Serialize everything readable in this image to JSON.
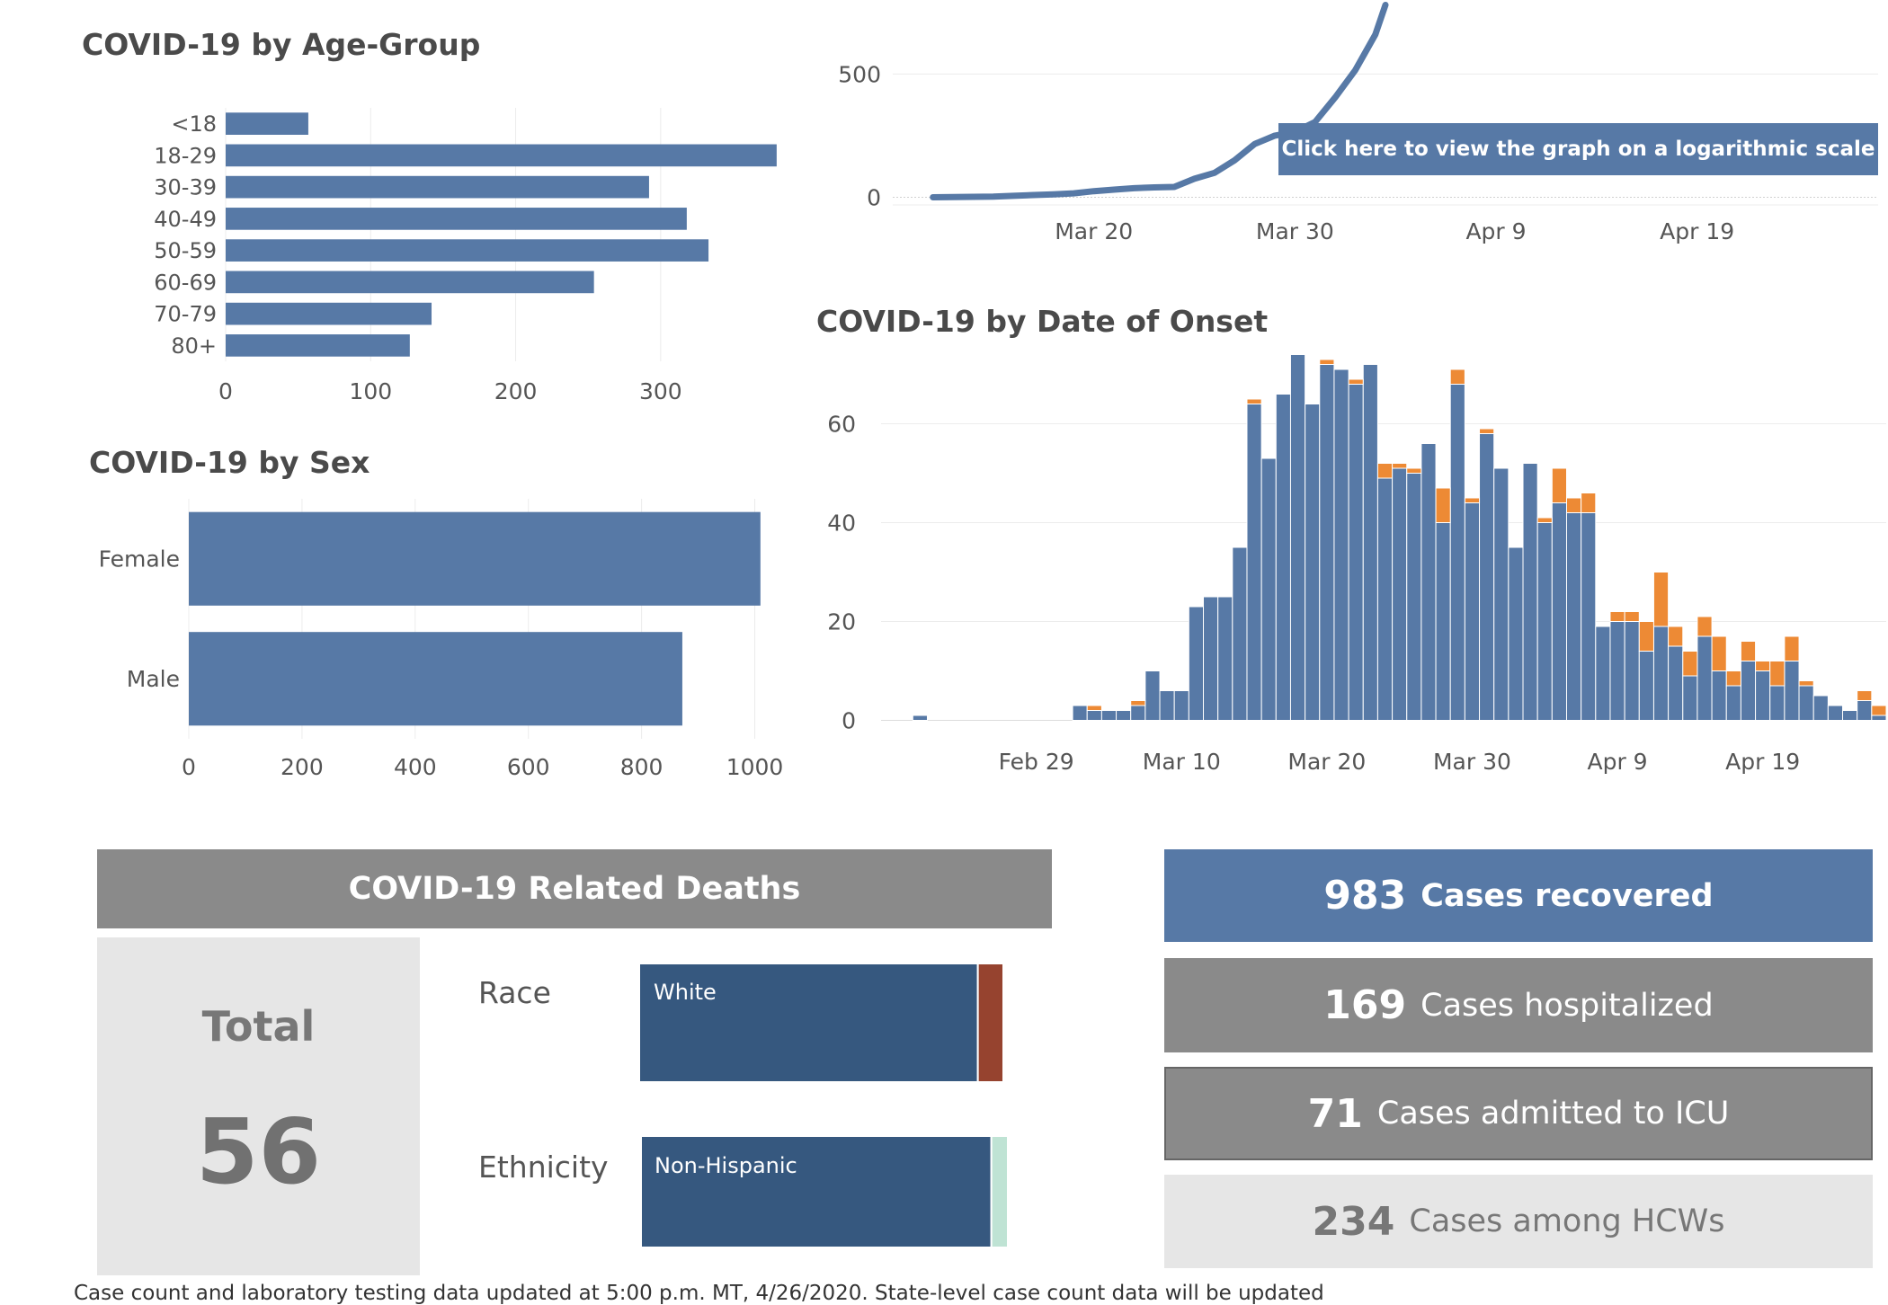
{
  "age_chart": {
    "title": "COVID-19 by Age-Group"
  },
  "sex_chart": {
    "title": "COVID-19 by Sex"
  },
  "cumulative_chart": {
    "log_button_label": "Click here to view the graph on a logarithmic scale"
  },
  "onset_chart": {
    "title": "COVID-19 by Date of Onset"
  },
  "chart_data": [
    {
      "id": "age",
      "type": "bar",
      "orientation": "horizontal",
      "title": "COVID-19 by Age-Group",
      "categories": [
        "<18",
        "18-29",
        "30-39",
        "40-49",
        "50-59",
        "60-69",
        "70-79",
        "80+"
      ],
      "values": [
        57,
        380,
        292,
        318,
        333,
        254,
        142,
        127
      ],
      "xlim": [
        0,
        390
      ],
      "xticks": [
        0,
        100,
        200,
        300
      ],
      "grid": true,
      "color": "#5779a6"
    },
    {
      "id": "sex",
      "type": "bar",
      "orientation": "horizontal",
      "title": "COVID-19 by Sex",
      "categories": [
        "Female",
        "Male"
      ],
      "values": [
        1010,
        872
      ],
      "xlim": [
        0,
        1050
      ],
      "xticks": [
        0,
        200,
        400,
        600,
        800,
        1000
      ],
      "grid": true,
      "color": "#5779a6"
    },
    {
      "id": "cumulative",
      "type": "line",
      "x_range": [
        "2020-03-10",
        "2020-04-28"
      ],
      "xticks": [
        "Mar 20",
        "Mar 30",
        "Apr 9",
        "Apr 19"
      ],
      "ylim": [
        -20,
        800
      ],
      "yticks": [
        0,
        500
      ],
      "color": "#5779a6",
      "points": [
        [
          "2020-03-12",
          0
        ],
        [
          "2020-03-13",
          1
        ],
        [
          "2020-03-14",
          2
        ],
        [
          "2020-03-15",
          3
        ],
        [
          "2020-03-16",
          6
        ],
        [
          "2020-03-17",
          9
        ],
        [
          "2020-03-18",
          12
        ],
        [
          "2020-03-19",
          16
        ],
        [
          "2020-03-20",
          25
        ],
        [
          "2020-03-21",
          31
        ],
        [
          "2020-03-22",
          37
        ],
        [
          "2020-03-23",
          40
        ],
        [
          "2020-03-24",
          42
        ],
        [
          "2020-03-25",
          75
        ],
        [
          "2020-03-26",
          99
        ],
        [
          "2020-03-27",
          150
        ],
        [
          "2020-03-28",
          216
        ],
        [
          "2020-03-29",
          250
        ],
        [
          "2020-03-30",
          265
        ],
        [
          "2020-03-31",
          305
        ],
        [
          "2020-04-01",
          405
        ],
        [
          "2020-04-02",
          515
        ],
        [
          "2020-04-03",
          660
        ],
        [
          "2020-04-03.5",
          780
        ]
      ]
    },
    {
      "id": "onset",
      "type": "bar",
      "stacked": true,
      "title": "COVID-19 by Date of Onset",
      "x_range": [
        "2020-02-19",
        "2020-04-27"
      ],
      "xticks": [
        "Feb 29",
        "Mar 10",
        "Mar 20",
        "Mar 30",
        "Apr 9",
        "Apr 19"
      ],
      "ylim": [
        -3,
        73
      ],
      "yticks": [
        0,
        20,
        40,
        60
      ],
      "grid": true,
      "series": [
        {
          "color": "#5779a6",
          "points": [
            [
              "2020-02-21",
              1
            ],
            [
              "2020-03-03",
              3
            ],
            [
              "2020-03-04",
              2
            ],
            [
              "2020-03-05",
              2
            ],
            [
              "2020-03-06",
              2
            ],
            [
              "2020-03-07",
              3
            ],
            [
              "2020-03-08",
              10
            ],
            [
              "2020-03-09",
              6
            ],
            [
              "2020-03-10",
              6
            ],
            [
              "2020-03-11",
              23
            ],
            [
              "2020-03-12",
              25
            ],
            [
              "2020-03-13",
              25
            ],
            [
              "2020-03-14",
              35
            ],
            [
              "2020-03-15",
              64
            ],
            [
              "2020-03-16",
              53
            ],
            [
              "2020-03-17",
              66
            ],
            [
              "2020-03-18",
              74
            ],
            [
              "2020-03-19",
              64
            ],
            [
              "2020-03-20",
              72
            ],
            [
              "2020-03-21",
              71
            ],
            [
              "2020-03-22",
              68
            ],
            [
              "2020-03-23",
              72
            ],
            [
              "2020-03-24",
              49
            ],
            [
              "2020-03-25",
              51
            ],
            [
              "2020-03-26",
              50
            ],
            [
              "2020-03-27",
              56
            ],
            [
              "2020-03-28",
              40
            ],
            [
              "2020-03-29",
              68
            ],
            [
              "2020-03-30",
              44
            ],
            [
              "2020-03-31",
              58
            ],
            [
              "2020-04-01",
              51
            ],
            [
              "2020-04-02",
              35
            ],
            [
              "2020-04-03",
              52
            ],
            [
              "2020-04-04",
              40
            ],
            [
              "2020-04-05",
              44
            ],
            [
              "2020-04-06",
              42
            ],
            [
              "2020-04-07",
              42
            ],
            [
              "2020-04-08",
              19
            ],
            [
              "2020-04-09",
              20
            ],
            [
              "2020-04-10",
              20
            ],
            [
              "2020-04-11",
              14
            ],
            [
              "2020-04-12",
              19
            ],
            [
              "2020-04-13",
              15
            ],
            [
              "2020-04-14",
              9
            ],
            [
              "2020-04-15",
              17
            ],
            [
              "2020-04-16",
              10
            ],
            [
              "2020-04-17",
              7
            ],
            [
              "2020-04-18",
              12
            ],
            [
              "2020-04-19",
              10
            ],
            [
              "2020-04-20",
              7
            ],
            [
              "2020-04-21",
              12
            ],
            [
              "2020-04-22",
              7
            ],
            [
              "2020-04-23",
              5
            ],
            [
              "2020-04-24",
              3
            ],
            [
              "2020-04-25",
              2
            ],
            [
              "2020-04-26",
              4
            ],
            [
              "2020-04-27",
              1
            ]
          ]
        },
        {
          "color": "#ed8a35",
          "points": [
            [
              "2020-03-04",
              1
            ],
            [
              "2020-03-07",
              1
            ],
            [
              "2020-03-15",
              1
            ],
            [
              "2020-03-20",
              1
            ],
            [
              "2020-03-22",
              1
            ],
            [
              "2020-03-24",
              3
            ],
            [
              "2020-03-25",
              1
            ],
            [
              "2020-03-26",
              1
            ],
            [
              "2020-03-28",
              7
            ],
            [
              "2020-03-29",
              3
            ],
            [
              "2020-03-30",
              1
            ],
            [
              "2020-03-31",
              1
            ],
            [
              "2020-04-04",
              1
            ],
            [
              "2020-04-05",
              7
            ],
            [
              "2020-04-06",
              3
            ],
            [
              "2020-04-07",
              4
            ],
            [
              "2020-04-09",
              2
            ],
            [
              "2020-04-10",
              2
            ],
            [
              "2020-04-11",
              6
            ],
            [
              "2020-04-12",
              11
            ],
            [
              "2020-04-13",
              4
            ],
            [
              "2020-04-14",
              5
            ],
            [
              "2020-04-15",
              4
            ],
            [
              "2020-04-16",
              7
            ],
            [
              "2020-04-17",
              3
            ],
            [
              "2020-04-18",
              4
            ],
            [
              "2020-04-19",
              2
            ],
            [
              "2020-04-20",
              5
            ],
            [
              "2020-04-21",
              5
            ],
            [
              "2020-04-22",
              1
            ],
            [
              "2020-04-26",
              2
            ],
            [
              "2020-04-27",
              2
            ]
          ]
        }
      ]
    },
    {
      "id": "deaths_race",
      "type": "bar",
      "stacked": true,
      "orientation": "horizontal",
      "categories": [
        "White"
      ],
      "segments": [
        {
          "label": "White",
          "share": 0.93,
          "color": "#36587f"
        },
        {
          "label": "",
          "share": 0.07,
          "color": "#96432f"
        }
      ]
    },
    {
      "id": "deaths_ethnicity",
      "type": "bar",
      "stacked": true,
      "orientation": "horizontal",
      "categories": [
        "Non-Hispanic"
      ],
      "segments": [
        {
          "label": "Non-Hispanic",
          "share": 0.955,
          "color": "#36587f"
        },
        {
          "label": "",
          "share": 0.045,
          "color": "#bfe3d4"
        }
      ]
    }
  ],
  "deaths": {
    "header": "COVID-19 Related Deaths",
    "total_label": "Total",
    "total_value": "56",
    "race_label": "Race",
    "race_bar_label": "White",
    "ethnicity_label": "Ethnicity",
    "ethnicity_bar_label": "Non-Hispanic"
  },
  "stats": {
    "recovered": {
      "value": "983",
      "label": "Cases recovered"
    },
    "hospitalized": {
      "value": "169",
      "label": "Cases hospitalized"
    },
    "icu": {
      "value": "71",
      "label": "Cases admitted to ICU"
    },
    "hcw": {
      "value": "234",
      "label": "Cases among HCWs"
    }
  },
  "footer": {
    "text": "Case count and laboratory testing data updated at 5:00 p.m. MT, 4/26/2020. State-level case count data will be updated"
  }
}
